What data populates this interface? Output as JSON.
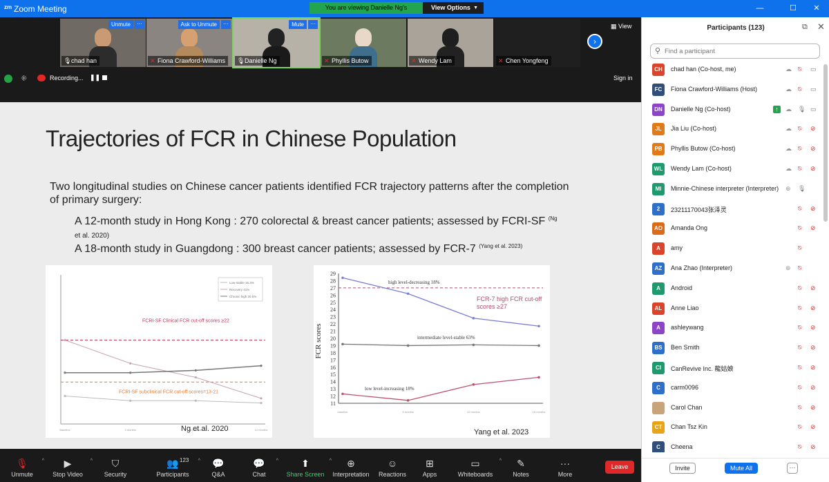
{
  "window": {
    "title": "Zoom Meeting",
    "logo_text": "zm",
    "viewing_banner": "You are viewing Danielle Ng's screen",
    "view_options_label": "View Options",
    "minimize": "—",
    "maximize": "☐",
    "close": "✕"
  },
  "video_strip": {
    "tiles": [
      {
        "name": "chad han",
        "tag": "Unmute",
        "muted": false
      },
      {
        "name": "Fiona Crawford-Williams",
        "tag": "Ask to Unmute",
        "muted": true
      },
      {
        "name": "Danielle Ng",
        "tag": "Mute",
        "muted": false
      },
      {
        "name": "Phyllis Butow",
        "tag": "",
        "muted": true
      },
      {
        "name": "Wendy Lam",
        "tag": "",
        "muted": true
      },
      {
        "name": "Chen Yongfeng",
        "tag": "",
        "muted": true
      }
    ],
    "view_label": "View",
    "recording_label": "Recording...",
    "pause_label": "❚❚",
    "sign_in_label": "Sign in"
  },
  "slide": {
    "title": "Trajectories of FCR in Chinese Population",
    "intro": "Two longitudinal studies on Chinese cancer patients identified FCR trajectory patterns after the completion of primary surgery:",
    "bullet1": "A 12-month study in Hong Kong : 270 colorectal & breast cancer patients; assessed by FCRI-SF",
    "bullet1_cite_a": "(Ng",
    "bullet1_cite_b": "et al. 2020)",
    "bullet2": "A 18-month study in Guangdong : 300 breast cancer patients; assessed by FCR-7",
    "bullet2_cite": "(Yang et al. 2023)"
  },
  "chart_data": [
    {
      "type": "line",
      "x": [
        "Baseline",
        "3 months",
        "6 months",
        "12 months"
      ],
      "series": [
        {
          "name": "Low-stable 16.3%",
          "values": [
            10,
            9,
            9,
            8.5
          ]
        },
        {
          "name": "Recovery 41%",
          "values": [
            22,
            17,
            14,
            9.5
          ]
        },
        {
          "name": "Chronic high 20.5%",
          "values": [
            15,
            15,
            15.5,
            16.5
          ]
        }
      ],
      "ylim": [
        4,
        36
      ],
      "annotations": [
        "FCRI-SF Clinical FCR cut-off scores ≥22",
        "FCRI-SF subclinical FCR cut-off scores=13-21"
      ],
      "source": "Ng et al. 2020"
    },
    {
      "type": "line",
      "x": [
        "baseline",
        "6 months",
        "12 months",
        "18 months"
      ],
      "y_ticks": [
        11,
        12,
        13,
        14,
        15,
        16,
        17,
        18,
        19,
        20,
        21,
        22,
        23,
        24,
        25,
        26,
        27,
        28,
        29
      ],
      "series": [
        {
          "name": "high level-decreasing 18%",
          "values": [
            28.4,
            26.2,
            22.8,
            21.7
          ]
        },
        {
          "name": "intermediate level-stable 63%",
          "values": [
            19.2,
            19.0,
            19.1,
            19.0
          ]
        },
        {
          "name": "low level-increasing 18%",
          "values": [
            12.3,
            11.4,
            13.6,
            14.6
          ]
        }
      ],
      "ylabel": "FCR scores",
      "ylim": [
        11,
        29
      ],
      "annotations": [
        "FCR-7 high FCR cut-off scores ≥27"
      ],
      "source": "Yang et al. 2023"
    }
  ],
  "toolbar": {
    "items": [
      {
        "label": "Unmute",
        "icon": "mic-off-icon"
      },
      {
        "label": "Stop Video",
        "icon": "video-camera-icon"
      },
      {
        "label": "Security",
        "icon": "shield-icon"
      },
      {
        "label": "Participants",
        "icon": "people-icon",
        "count": "123"
      },
      {
        "label": "Q&A",
        "icon": "qa-icon"
      },
      {
        "label": "Chat",
        "icon": "chat-icon"
      },
      {
        "label": "Share Screen",
        "icon": "share-screen-icon"
      },
      {
        "label": "Interpretation",
        "icon": "globe-icon"
      },
      {
        "label": "Reactions",
        "icon": "smiley-icon"
      },
      {
        "label": "Apps",
        "icon": "apps-icon"
      },
      {
        "label": "Whiteboards",
        "icon": "whiteboard-icon"
      },
      {
        "label": "Notes",
        "icon": "notes-icon"
      },
      {
        "label": "More",
        "icon": "more-icon"
      }
    ],
    "leave_label": "Leave"
  },
  "participants": {
    "title": "Participants (123)",
    "search_placeholder": "Find a participant",
    "list": [
      {
        "initials": "CH",
        "name": "chad han (Co-host, me)",
        "color": "#d9442b"
      },
      {
        "initials": "FC",
        "name": "Fiona Crawford-Williams (Host)",
        "color": "#2f4f7a"
      },
      {
        "initials": "DN",
        "name": "Danielle Ng (Co-host)",
        "color": "#8e44c9"
      },
      {
        "initials": "JL",
        "name": "Jia Liu (Co-host)",
        "color": "#e07b1a"
      },
      {
        "initials": "PB",
        "name": "Phyllis Butow (Co-host)",
        "color": "#e07b1a"
      },
      {
        "initials": "WL",
        "name": "Wendy Lam (Co-host)",
        "color": "#1f9a6e"
      },
      {
        "initials": "MI",
        "name": "Minnie-Chinese interpreter (Interpreter)",
        "color": "#1f9a6e"
      },
      {
        "initials": "2",
        "name": "23211170043张泽灵",
        "color": "#2d6fc9"
      },
      {
        "initials": "AO",
        "name": "Amanda Ong",
        "color": "#d96b1a"
      },
      {
        "initials": "A",
        "name": "amy",
        "color": "#d9442b"
      },
      {
        "initials": "AZ",
        "name": "Ana Zhao (Interpreter)",
        "color": "#2d6fc9"
      },
      {
        "initials": "A",
        "name": "Android",
        "color": "#1f9a6e"
      },
      {
        "initials": "AL",
        "name": "Anne Liao",
        "color": "#d9442b"
      },
      {
        "initials": "A",
        "name": "ashleywang",
        "color": "#8e44c9"
      },
      {
        "initials": "BS",
        "name": "Ben Smith",
        "color": "#2d6fc9"
      },
      {
        "initials": "CI",
        "name": "CanRevive Inc. 龍姑娘",
        "color": "#1f9a6e"
      },
      {
        "initials": "C",
        "name": "carm0096",
        "color": "#2d6fc9"
      },
      {
        "initials": "",
        "name": "Carol Chan",
        "color": "#c9a37a"
      },
      {
        "initials": "CT",
        "name": "Chan Tsz Kin",
        "color": "#e8a317"
      },
      {
        "initials": "C",
        "name": "Cheena",
        "color": "#2f4f7a"
      }
    ],
    "invite_label": "Invite",
    "mute_all_label": "Mute All",
    "more_label": "···"
  }
}
